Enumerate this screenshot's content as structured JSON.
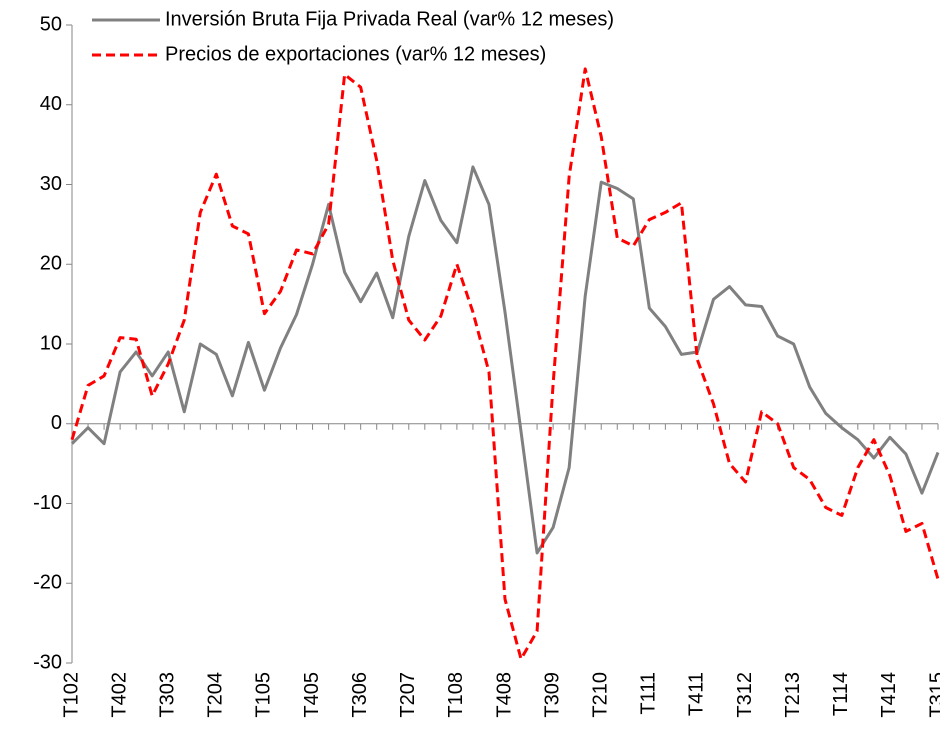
{
  "chart_data": {
    "type": "line",
    "categories": [
      "T102",
      null,
      null,
      "T402",
      null,
      null,
      "T303",
      null,
      null,
      "T204",
      null,
      null,
      "T105",
      null,
      null,
      "T405",
      null,
      null,
      "T306",
      null,
      null,
      "T207",
      null,
      null,
      "T108",
      null,
      null,
      "T408",
      null,
      null,
      "T309",
      null,
      null,
      "T210",
      null,
      null,
      "T111",
      null,
      null,
      "T411",
      null,
      null,
      "T312",
      null,
      null,
      "T213",
      null,
      null,
      "T114",
      null,
      null,
      "T414",
      null,
      null,
      "T315"
    ],
    "series": [
      {
        "name": "Inversión Bruta Fija Privada Real (var% 12 meses)",
        "color": "#808080",
        "dashed": false,
        "values": [
          -2.5,
          -0.5,
          -2.5,
          6.5,
          9,
          6,
          9,
          1.5,
          10,
          8.7,
          3.5,
          10.2,
          4.2,
          9.5,
          13.7,
          20,
          27.5,
          19,
          15.3,
          18.9,
          13.3,
          23.5,
          30.5,
          25.5,
          22.7,
          32.2,
          27.5,
          14,
          -1,
          -16.2,
          -13,
          -5.5,
          16,
          30.3,
          29.5,
          28.2,
          14.5,
          12.2,
          8.7,
          9,
          15.6,
          17.2,
          14.9,
          14.7,
          11,
          10,
          4.6,
          1.3,
          -0.5,
          -2,
          -4.3,
          -1.7,
          -3.8,
          -8.7,
          -3.6
        ]
      },
      {
        "name": "Precios de exportaciones (var% 12 meses)",
        "color": "#ff0000",
        "dashed": true,
        "values": [
          -2,
          4.8,
          6,
          10.8,
          10.6,
          3.5,
          7.5,
          13,
          26.5,
          31.3,
          24.8,
          23.8,
          13.8,
          16.6,
          21.8,
          21.3,
          25,
          43.8,
          42.2,
          33,
          20.5,
          13,
          10.5,
          13.5,
          20,
          14,
          6.5,
          -22,
          -29.5,
          -26,
          5,
          31,
          44.5,
          36,
          23.3,
          22.3,
          25.6,
          26.5,
          27.7,
          8,
          2.5,
          -5,
          -7.3,
          1.5,
          0,
          -5.5,
          -7,
          -10.5,
          -11.5,
          -5.5,
          -2,
          -6.5,
          -13.5,
          -12.5,
          -19.5
        ]
      }
    ],
    "ylim": [
      -30,
      50
    ],
    "yticks": [
      -30,
      -20,
      -10,
      0,
      10,
      20,
      30,
      40,
      50
    ],
    "legend": "top-left"
  }
}
